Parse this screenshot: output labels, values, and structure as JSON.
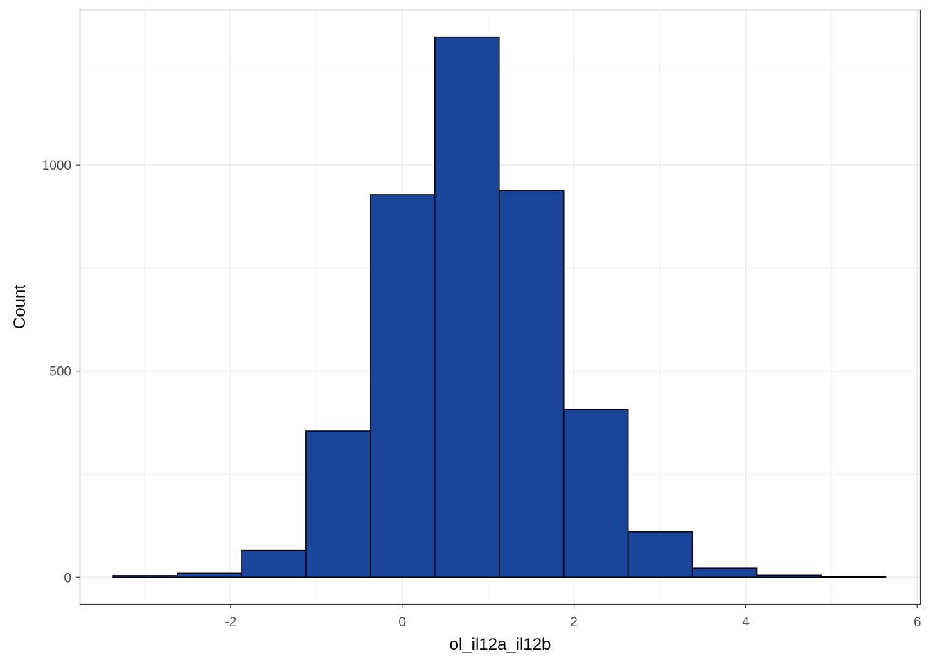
{
  "chart_data": {
    "type": "bar",
    "subtype": "histogram",
    "title": "",
    "xlabel": "ol_il12a_il12b",
    "ylabel": "Count",
    "xlim": [
      -3.75,
      6.03
    ],
    "ylim": [
      -65,
      1375
    ],
    "x_ticks": [
      -2,
      0,
      2,
      4,
      6
    ],
    "x_tick_labels": [
      "-2",
      "0",
      "2",
      "4",
      "6"
    ],
    "y_ticks": [
      0,
      500,
      1000
    ],
    "y_tick_labels": [
      "0",
      "500",
      "1000"
    ],
    "grid": true,
    "legend": "none",
    "bin_width": 0.75,
    "bins": [
      {
        "x0": -3.37,
        "x1": -2.62,
        "count": 4
      },
      {
        "x0": -2.62,
        "x1": -1.87,
        "count": 10
      },
      {
        "x0": -1.87,
        "x1": -1.12,
        "count": 65
      },
      {
        "x0": -1.12,
        "x1": -0.37,
        "count": 355
      },
      {
        "x0": -0.37,
        "x1": 0.38,
        "count": 928
      },
      {
        "x0": 0.38,
        "x1": 1.13,
        "count": 1310
      },
      {
        "x0": 1.13,
        "x1": 1.88,
        "count": 938
      },
      {
        "x0": 1.88,
        "x1": 2.63,
        "count": 407
      },
      {
        "x0": 2.63,
        "x1": 3.38,
        "count": 110
      },
      {
        "x0": 3.38,
        "x1": 4.13,
        "count": 22
      },
      {
        "x0": 4.13,
        "x1": 4.88,
        "count": 5
      },
      {
        "x0": 4.88,
        "x1": 5.63,
        "count": 2
      }
    ],
    "bar_fill": "#1a459b",
    "bar_stroke": "#000000",
    "panel_border": "#333333",
    "grid_major_color": "#ebebeb",
    "grid_minor_color": "#f2f2f2"
  }
}
